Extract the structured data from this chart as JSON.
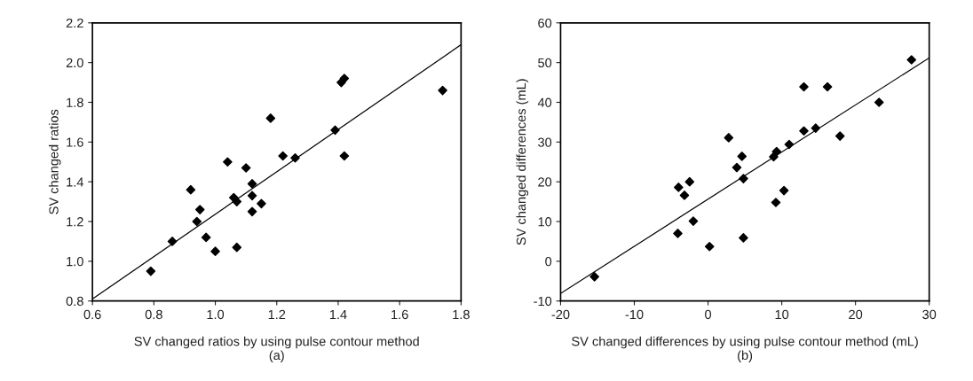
{
  "chart_data": [
    {
      "type": "scatter",
      "xlabel": "SV changed ratios by using pulse contour method\n(a)",
      "ylabel": "SV changed ratios",
      "xlim": [
        0.6,
        1.8
      ],
      "xticks": [
        0.6,
        0.8,
        {
          "value": 1,
          "label": "1.0"
        },
        1.2,
        1.4,
        1.6,
        1.8
      ],
      "ylim": [
        0.8,
        2.2
      ],
      "yticks": [
        0.8,
        {
          "value": 1,
          "label": "1.0"
        },
        1.2,
        1.4,
        1.6,
        1.8,
        {
          "value": 2,
          "label": "2.0"
        },
        2.2
      ],
      "series": [
        {
          "marker": "diamond",
          "color": "#000000",
          "x": [
            0.79,
            0.86,
            0.92,
            0.95,
            0.94,
            0.97,
            1.0,
            1.04,
            1.06,
            1.07,
            1.07,
            1.1,
            1.12,
            1.12,
            1.12,
            1.15,
            1.18,
            1.22,
            1.26,
            1.39,
            1.41,
            1.42,
            1.42,
            1.74
          ],
          "values": [
            0.95,
            1.1,
            1.36,
            1.26,
            1.2,
            1.12,
            1.05,
            1.5,
            1.32,
            1.3,
            1.07,
            1.47,
            1.39,
            1.33,
            1.25,
            1.29,
            1.72,
            1.53,
            1.52,
            1.66,
            1.9,
            1.92,
            1.53,
            1.86
          ]
        },
        {
          "type": "line",
          "color": "#000000",
          "x": [
            0.6,
            1.8
          ],
          "values": [
            0.81,
            2.09
          ]
        }
      ]
    },
    {
      "type": "scatter",
      "xlabel": "SV changed differences by using pulse contour method (mL)\n(b)",
      "ylabel": "SV changed differences (mL)",
      "xlim": [
        -20,
        30
      ],
      "xticks": [
        -20,
        -10,
        0,
        10,
        20,
        30
      ],
      "ylim": [
        -10,
        60
      ],
      "yticks": [
        -10,
        0,
        10,
        20,
        30,
        40,
        50,
        60
      ],
      "series": [
        {
          "marker": "diamond",
          "color": "#000000",
          "x": [
            -15.4,
            -4.0,
            -3.2,
            -2.5,
            -4.1,
            -2.0,
            0.2,
            2.8,
            3.9,
            4.6,
            4.8,
            4.8,
            8.9,
            9.3,
            9.2,
            10.3,
            11.0,
            13.0,
            13.0,
            14.6,
            16.2,
            17.9,
            23.2,
            27.6
          ],
          "values": [
            -3.9,
            18.6,
            16.6,
            20.0,
            7.0,
            10.1,
            3.7,
            31.1,
            23.6,
            26.4,
            20.8,
            5.9,
            26.3,
            27.6,
            14.8,
            17.8,
            29.4,
            43.9,
            32.8,
            33.5,
            43.9,
            31.5,
            40.0,
            50.7
          ]
        },
        {
          "type": "line",
          "color": "#000000",
          "x": [
            -20,
            30
          ],
          "values": [
            -8.1,
            51.2
          ]
        }
      ]
    }
  ]
}
